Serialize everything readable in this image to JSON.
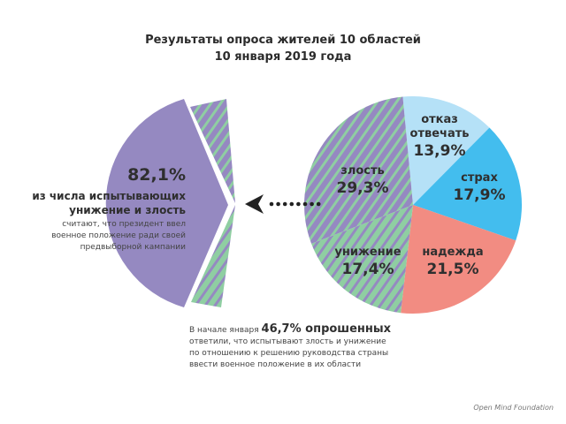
{
  "title": {
    "line1": "Результаты опроса жителей 10 областей",
    "line2": "10 января 2019 года"
  },
  "colors": {
    "purple": "#9589c1",
    "green": "#8fcea2",
    "light_blue": "#b5e1f7",
    "blue": "#43bdee",
    "salmon": "#f28c82"
  },
  "chart_data": {
    "type": "pie",
    "title": "Результаты опроса жителей 10 областей, 10 января 2019 года",
    "slices": [
      {
        "label_line1": "отказ",
        "label_line2": "отвечать",
        "label": "отказ отвечать",
        "value": 13.9,
        "value_text": "13,9%",
        "color": "#b5e1f7"
      },
      {
        "label": "страх",
        "value": 17.9,
        "value_text": "17,9%",
        "color": "#43bdee"
      },
      {
        "label": "надежда",
        "value": 21.5,
        "value_text": "21,5%",
        "color": "#f28c82"
      },
      {
        "label": "унижение",
        "value": 17.4,
        "value_text": "17,4%",
        "color": "hatch-green"
      },
      {
        "label": "злость",
        "value": 29.3,
        "value_text": "29,3%",
        "color": "hatch-purple"
      }
    ],
    "breakout": {
      "value": 82.1,
      "value_text": "82,1%"
    }
  },
  "left_text": {
    "percent": "82,1%",
    "subtitle1": "из числа испытывающих",
    "subtitle2": "унижение и злость",
    "desc1": "считают, что президент ввел",
    "desc2": "военное положение ради своей",
    "desc3": "предвыборной кампании"
  },
  "bottom_text": {
    "prefix": "В начале января ",
    "highlight": "46,7% опрошенных",
    "line2": "ответили, что испытывают злость и унижение",
    "line3": "по отношению к решению руководства страны",
    "line4": "ввести военное положение в их области"
  },
  "footer": "Open Mind Foundation"
}
